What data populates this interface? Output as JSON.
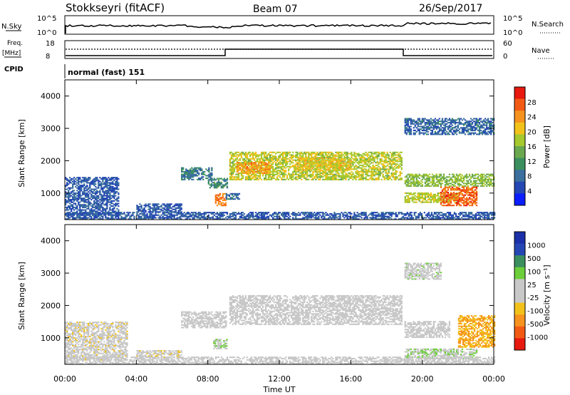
{
  "header": {
    "station": "Stokkseyri (fitACF)",
    "beam": "Beam 07",
    "date": "26/Sep/2017"
  },
  "summary": {
    "nsky_label": "N.Sky",
    "nsky_ticks": [
      "10^5",
      "10^0"
    ],
    "nsearch_label": "N.Search",
    "nsearch_ticks": [
      "10^5",
      "10^0"
    ],
    "freq_label_1": "Freq.",
    "freq_label_2": "[MHz]",
    "freq_ticks": [
      "18",
      "8"
    ],
    "nave_label": "Nave",
    "nave_ticks": [
      "60",
      "0"
    ],
    "cpid_label": "CPID",
    "cpid_text": "normal (fast) 151"
  },
  "colors": {
    "power": [
      "#0a1eff",
      "#2447b4",
      "#3a6f9e",
      "#3b8f5f",
      "#6aa84f",
      "#a6c92e",
      "#f2c21a",
      "#f6921e",
      "#f25a14",
      "#e8190f"
    ],
    "velocity": [
      "#e8190f",
      "#f25a14",
      "#f6921e",
      "#f2c21a",
      "#c8c8c8",
      "#c8c8c8",
      "#6ccf3a",
      "#3b8f5f",
      "#2447b4",
      "#1a2fa8"
    ]
  },
  "chart_data": [
    {
      "type": "heatmap",
      "ylabel": "Slant Range [km]",
      "yticks": [
        "4000",
        "3000",
        "2000",
        "1000"
      ],
      "ylim": [
        180,
        4500
      ],
      "xlim": [
        0,
        24
      ],
      "colorbar_label": "Power [dB]",
      "colorbar_ticks": [
        "28",
        "24",
        "20",
        "16",
        "12",
        "8",
        "4"
      ],
      "clim": [
        0,
        30
      ],
      "regions": [
        {
          "t0": 9.2,
          "t1": 18.8,
          "r0": 1400,
          "r1": 2250,
          "v": 17
        },
        {
          "t0": 9.6,
          "t1": 11.5,
          "r0": 1600,
          "r1": 1950,
          "v": 22
        },
        {
          "t0": 13.0,
          "t1": 16.0,
          "r0": 1700,
          "r1": 2100,
          "v": 19
        },
        {
          "t0": 8.4,
          "t1": 9.0,
          "r0": 600,
          "r1": 1000,
          "v": 24
        },
        {
          "t0": 8.0,
          "t1": 9.1,
          "r0": 1150,
          "r1": 1450,
          "v": 10
        },
        {
          "t0": 6.5,
          "t1": 8.2,
          "r0": 1400,
          "r1": 1800,
          "v": 8
        },
        {
          "t0": 19.0,
          "t1": 24.0,
          "r0": 1200,
          "r1": 1600,
          "v": 15
        },
        {
          "t0": 19.0,
          "t1": 22.0,
          "r0": 700,
          "r1": 1000,
          "v": 17
        },
        {
          "t0": 21.0,
          "t1": 23.0,
          "r0": 600,
          "r1": 1200,
          "v": 25
        },
        {
          "t0": 0.0,
          "t1": 3.0,
          "r0": 300,
          "r1": 1500,
          "v": 6
        },
        {
          "t0": 4.0,
          "t1": 6.5,
          "r0": 400,
          "r1": 650,
          "v": 6
        },
        {
          "t0": 19.0,
          "t1": 24.0,
          "r0": 2800,
          "r1": 3300,
          "v": 7
        },
        {
          "t0": 0.0,
          "t1": 24.0,
          "r0": 180,
          "r1": 400,
          "v": 6
        },
        {
          "t0": 9.0,
          "t1": 9.8,
          "r0": 800,
          "r1": 1000,
          "v": 8
        }
      ]
    },
    {
      "type": "heatmap",
      "ylabel": "Slant Range [km]",
      "yticks": [
        "4000",
        "3000",
        "2000",
        "1000"
      ],
      "ylim": [
        180,
        4500
      ],
      "xlim": [
        0,
        24
      ],
      "xticks": [
        "00:00",
        "04:00",
        "08:00",
        "12:00",
        "16:00",
        "20:00",
        "00:00"
      ],
      "xlabel": "Time UT",
      "colorbar_label": "Velocity [m s⁻¹]",
      "colorbar_ticks": [
        "1000",
        "500",
        "100",
        "25",
        "-25",
        "-100",
        "-500",
        "-1000"
      ],
      "clim": [
        -1000,
        1000
      ],
      "regions": [
        {
          "t0": 9.2,
          "t1": 18.8,
          "r0": 1400,
          "r1": 2300,
          "v": 0
        },
        {
          "t0": 6.5,
          "t1": 9.0,
          "r0": 1300,
          "r1": 1800,
          "v": 0
        },
        {
          "t0": 8.3,
          "t1": 9.1,
          "r0": 650,
          "r1": 950,
          "v": 150
        },
        {
          "t0": 4.0,
          "t1": 6.5,
          "r0": 380,
          "r1": 600,
          "v": -80
        },
        {
          "t0": 19.0,
          "t1": 23.0,
          "r0": 350,
          "r1": 650,
          "v": 150
        },
        {
          "t0": 22.0,
          "t1": 24.0,
          "r0": 700,
          "r1": 1700,
          "v": -400
        },
        {
          "t0": 19.0,
          "t1": 21.5,
          "r0": 1000,
          "r1": 1500,
          "v": 0
        },
        {
          "t0": 0.0,
          "t1": 3.5,
          "r0": 300,
          "r1": 1500,
          "v": -60
        },
        {
          "t0": 19.0,
          "t1": 21.0,
          "r0": 2800,
          "r1": 3300,
          "v": 60
        },
        {
          "t0": 0.0,
          "t1": 24.0,
          "r0": 180,
          "r1": 400,
          "v": 20
        }
      ]
    }
  ]
}
